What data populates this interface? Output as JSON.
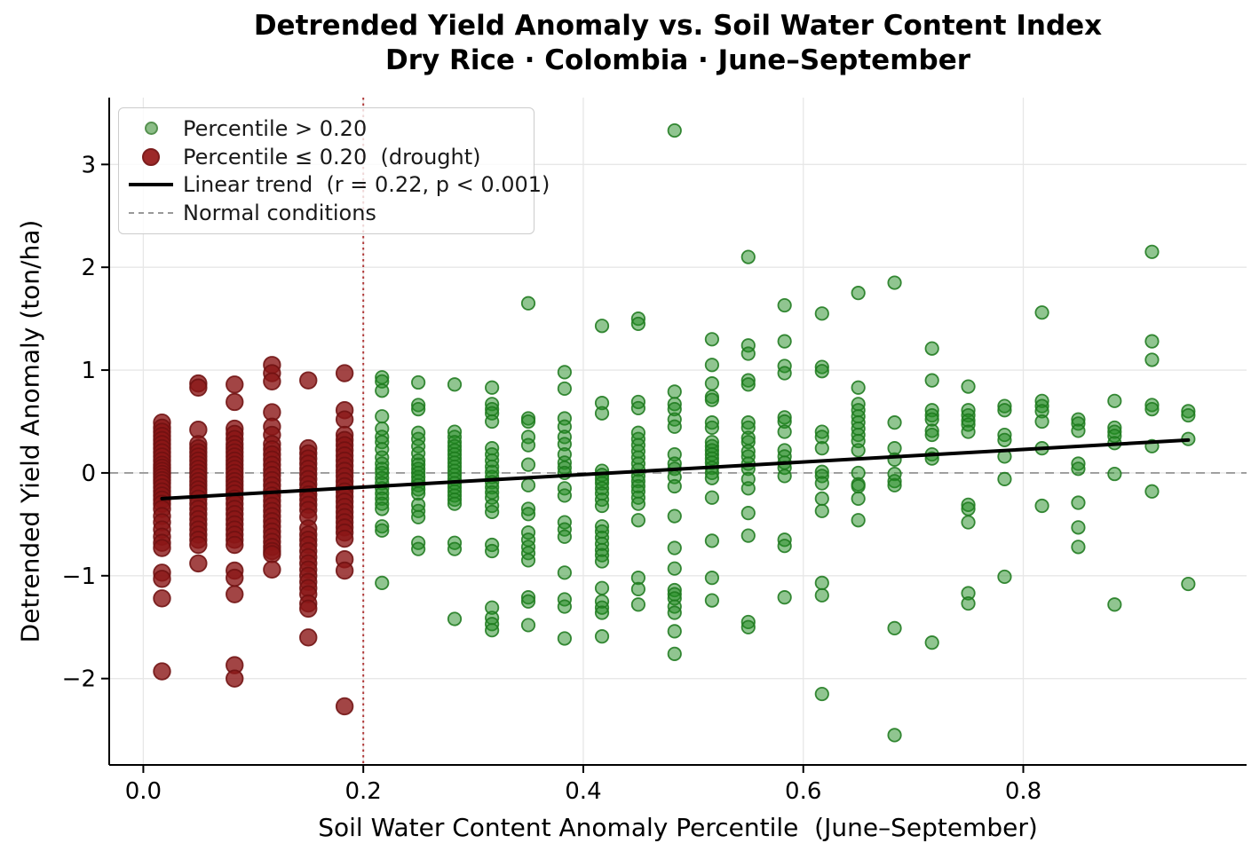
{
  "title": {
    "line1": "Detrended Yield Anomaly vs. Soil Water Content Index",
    "line2": "Dry Rice · Colombia · June–September"
  },
  "axes": {
    "xlabel": "Soil Water Content Anomaly Percentile  (June–September)",
    "ylabel": "Detrended Yield Anomaly (ton/ha)"
  },
  "legend": {
    "position": "upper-left",
    "items": [
      {
        "label": "Percentile > 0.20",
        "marker": "circle-small",
        "fill": "#8cbd87",
        "edge": "#55914f"
      },
      {
        "label": "Percentile ≤ 0.20  (drought)",
        "marker": "circle-large",
        "fill": "#9d2929",
        "edge": "#7c1d1d"
      },
      {
        "label": "Linear trend  (r = 0.22, p < 0.001)",
        "marker": "line",
        "fill": "#000000",
        "edge": "#000000"
      },
      {
        "label": "Normal conditions",
        "marker": "dashed-line",
        "fill": "#999999",
        "edge": "#999999"
      }
    ]
  },
  "chart_data": {
    "type": "scatter",
    "title": "Detrended Yield Anomaly vs. Soil Water Content Index — Dry Rice · Colombia · June–September",
    "xlabel": "Soil Water Content Anomaly Percentile (June–September)",
    "ylabel": "Detrended Yield Anomaly (ton/ha)",
    "xlim": [
      -0.031,
      1.003
    ],
    "ylim": [
      -2.84,
      3.65
    ],
    "grid": true,
    "grid_color": "#e7e7e7",
    "xticks": {
      "values": [
        0.0,
        0.2,
        0.4,
        0.6,
        0.8
      ],
      "labels": [
        "0.0",
        "0.2",
        "0.4",
        "0.6",
        "0.8"
      ]
    },
    "yticks": {
      "values": [
        3,
        2,
        1,
        0,
        -1,
        -2
      ],
      "labels": [
        "3",
        "2",
        "1",
        "0",
        "−1",
        "−2"
      ]
    },
    "threshold_x": 0.2,
    "threshold_color": "#b13b3b",
    "normal_y": 0,
    "normal_color": "#9a9a9a",
    "trend": {
      "x1": 0.017,
      "y1": -0.25,
      "x2": 0.95,
      "y2": 0.32,
      "r": 0.22,
      "p": "< 0.001",
      "color": "#000000"
    },
    "series": [
      {
        "name": "Percentile ≤ 0.20  (drought)",
        "fill": "#8b1717",
        "fill_opacity": 0.8,
        "edge": "#701111",
        "radius": 9.3,
        "columns": [
          {
            "x": 0.017,
            "ys": [
              0.49,
              0.44,
              0.4,
              0.36,
              0.32,
              0.28,
              0.24,
              0.2,
              0.16,
              0.12,
              0.08,
              0.05,
              0.02,
              -0.01,
              -0.04,
              -0.07,
              -0.1,
              -0.14,
              -0.18,
              -0.22,
              -0.26,
              -0.3,
              -0.35,
              -0.42,
              -0.48,
              -0.55,
              -0.62,
              -0.68,
              -0.73,
              -0.97,
              -1.03,
              -1.22,
              -1.93
            ]
          },
          {
            "x": 0.05,
            "ys": [
              0.87,
              0.83,
              0.42,
              0.28,
              0.24,
              0.2,
              0.16,
              0.12,
              0.08,
              0.04,
              0.0,
              -0.04,
              -0.08,
              -0.12,
              -0.16,
              -0.2,
              -0.25,
              -0.3,
              -0.35,
              -0.4,
              -0.45,
              -0.5,
              -0.55,
              -0.6,
              -0.65,
              -0.7,
              -0.88
            ]
          },
          {
            "x": 0.083,
            "ys": [
              0.86,
              0.69,
              0.43,
              0.38,
              0.33,
              0.28,
              0.24,
              0.2,
              0.16,
              0.12,
              0.08,
              0.04,
              0.0,
              -0.04,
              -0.08,
              -0.12,
              -0.16,
              -0.2,
              -0.25,
              -0.3,
              -0.35,
              -0.4,
              -0.45,
              -0.5,
              -0.55,
              -0.6,
              -0.65,
              -0.7,
              -0.95,
              -1.02,
              -1.18,
              -1.87,
              -2.0
            ]
          },
          {
            "x": 0.117,
            "ys": [
              1.05,
              0.97,
              0.89,
              0.59,
              0.45,
              0.37,
              0.28,
              0.23,
              0.18,
              0.13,
              0.08,
              0.03,
              -0.02,
              -0.07,
              -0.12,
              -0.17,
              -0.22,
              -0.27,
              -0.32,
              -0.37,
              -0.42,
              -0.47,
              -0.52,
              -0.57,
              -0.62,
              -0.67,
              -0.72,
              -0.76,
              -0.79,
              -0.94
            ]
          },
          {
            "x": 0.15,
            "ys": [
              0.9,
              0.24,
              0.19,
              0.14,
              0.09,
              0.04,
              -0.01,
              -0.06,
              -0.11,
              -0.16,
              -0.21,
              -0.26,
              -0.31,
              -0.36,
              -0.43,
              -0.54,
              -0.6,
              -0.65,
              -0.7,
              -0.76,
              -0.82,
              -0.88,
              -0.94,
              -1.0,
              -1.06,
              -1.12,
              -1.18,
              -1.27,
              -1.32,
              -1.6
            ]
          },
          {
            "x": 0.183,
            "ys": [
              0.97,
              0.61,
              0.52,
              0.37,
              0.32,
              0.27,
              0.22,
              0.17,
              0.12,
              0.07,
              0.02,
              -0.03,
              -0.08,
              -0.13,
              -0.18,
              -0.23,
              -0.28,
              -0.33,
              -0.38,
              -0.43,
              -0.48,
              -0.53,
              -0.58,
              -0.64,
              -0.84,
              -0.95,
              -2.27
            ]
          }
        ]
      },
      {
        "name": "Percentile > 0.20",
        "fill": "#228b22",
        "fill_opacity": 0.5,
        "edge": "#1e7a1e",
        "radius": 7.2,
        "columns": [
          {
            "x": 0.217,
            "ys": [
              0.93,
              0.89,
              0.8,
              0.55,
              0.43,
              0.35,
              0.3,
              0.23,
              0.15,
              0.09,
              0.04,
              0.0,
              -0.05,
              -0.1,
              -0.15,
              -0.2,
              -0.25,
              -0.3,
              -0.35,
              -0.52,
              -0.56,
              -1.07
            ]
          },
          {
            "x": 0.25,
            "ys": [
              0.88,
              0.66,
              0.62,
              0.39,
              0.33,
              0.26,
              0.19,
              0.12,
              0.08,
              0.04,
              0.0,
              -0.04,
              -0.08,
              -0.12,
              -0.16,
              -0.2,
              -0.31,
              -0.37,
              -0.43,
              -0.68,
              -0.74
            ]
          },
          {
            "x": 0.283,
            "ys": [
              0.86,
              0.4,
              0.35,
              0.3,
              0.26,
              0.22,
              0.18,
              0.14,
              0.1,
              0.06,
              0.02,
              -0.02,
              -0.06,
              -0.1,
              -0.14,
              -0.18,
              -0.22,
              -0.26,
              -0.3,
              -0.68,
              -0.74,
              -1.42
            ]
          },
          {
            "x": 0.317,
            "ys": [
              0.83,
              0.67,
              0.62,
              0.58,
              0.5,
              0.24,
              0.18,
              0.12,
              0.06,
              0.01,
              -0.04,
              -0.09,
              -0.14,
              -0.19,
              -0.24,
              -0.32,
              -0.38,
              -0.7,
              -0.76,
              -1.31,
              -1.41,
              -1.47,
              -1.53
            ]
          },
          {
            "x": 0.35,
            "ys": [
              1.65,
              0.53,
              0.5,
              0.35,
              0.27,
              0.08,
              -0.12,
              -0.35,
              -0.4,
              -0.58,
              -0.65,
              -0.72,
              -0.78,
              -0.85,
              -1.21,
              -1.25,
              -1.48
            ]
          },
          {
            "x": 0.383,
            "ys": [
              0.98,
              0.82,
              0.53,
              0.45,
              0.35,
              0.28,
              0.18,
              0.1,
              0.05,
              0.0,
              -0.15,
              -0.22,
              -0.48,
              -0.55,
              -0.62,
              -0.97,
              -1.23,
              -1.3,
              -1.61
            ]
          },
          {
            "x": 0.417,
            "ys": [
              1.43,
              0.68,
              0.58,
              0.02,
              -0.02,
              -0.06,
              -0.1,
              -0.15,
              -0.2,
              -0.26,
              -0.32,
              -0.52,
              -0.57,
              -0.63,
              -0.69,
              -0.75,
              -0.8,
              -0.86,
              -1.12,
              -1.25,
              -1.31,
              -1.36,
              -1.59
            ]
          },
          {
            "x": 0.45,
            "ys": [
              1.5,
              1.45,
              0.69,
              0.63,
              0.39,
              0.33,
              0.27,
              0.21,
              0.15,
              0.09,
              0.03,
              -0.03,
              -0.08,
              -0.13,
              -0.18,
              -0.24,
              -0.3,
              -0.46,
              -1.02,
              -1.13,
              -1.28
            ]
          },
          {
            "x": 0.483,
            "ys": [
              3.33,
              0.79,
              0.67,
              0.62,
              0.52,
              0.45,
              0.18,
              0.09,
              0.04,
              -0.04,
              -0.13,
              -0.42,
              -0.73,
              -0.93,
              -1.14,
              -1.18,
              -1.22,
              -1.3,
              -1.36,
              -1.54,
              -1.76
            ]
          },
          {
            "x": 0.517,
            "ys": [
              1.3,
              1.05,
              0.87,
              0.74,
              0.71,
              0.49,
              0.44,
              0.3,
              0.26,
              0.22,
              0.18,
              0.14,
              0.1,
              0.05,
              0.0,
              -0.05,
              -0.24,
              -0.66,
              -1.02,
              -1.24
            ]
          },
          {
            "x": 0.55,
            "ys": [
              2.1,
              1.24,
              1.16,
              0.9,
              0.86,
              0.49,
              0.44,
              0.34,
              0.3,
              0.21,
              0.16,
              0.09,
              0.04,
              -0.06,
              -0.15,
              -0.39,
              -0.61,
              -1.45,
              -1.5
            ]
          },
          {
            "x": 0.583,
            "ys": [
              1.63,
              1.28,
              1.04,
              0.97,
              0.54,
              0.5,
              0.4,
              0.22,
              0.16,
              0.1,
              0.05,
              -0.03,
              -0.65,
              -0.71,
              -1.21
            ]
          },
          {
            "x": 0.617,
            "ys": [
              1.55,
              1.03,
              0.99,
              0.4,
              0.35,
              0.24,
              0.01,
              -0.03,
              -0.1,
              -0.25,
              -0.37,
              -1.07,
              -1.19,
              -2.15
            ]
          },
          {
            "x": 0.65,
            "ys": [
              1.75,
              0.83,
              0.67,
              0.61,
              0.55,
              0.49,
              0.43,
              0.37,
              0.31,
              0.22,
              0.0,
              -0.11,
              -0.13,
              -0.25,
              -0.46
            ]
          },
          {
            "x": 0.683,
            "ys": [
              1.85,
              0.49,
              0.24,
              0.13,
              -0.01,
              -0.08,
              -0.12,
              -1.51,
              -2.55
            ]
          },
          {
            "x": 0.717,
            "ys": [
              1.21,
              0.9,
              0.61,
              0.56,
              0.52,
              0.41,
              0.37,
              0.18,
              0.14,
              -1.65
            ]
          },
          {
            "x": 0.75,
            "ys": [
              0.84,
              0.61,
              0.56,
              0.51,
              0.47,
              0.4,
              -0.31,
              -0.35,
              -0.48,
              -1.17,
              -1.27
            ]
          },
          {
            "x": 0.783,
            "ys": [
              0.65,
              0.61,
              0.37,
              0.32,
              0.16,
              -0.06,
              -1.01
            ]
          },
          {
            "x": 0.817,
            "ys": [
              1.56,
              0.7,
              0.65,
              0.6,
              0.5,
              0.24,
              -0.32
            ]
          },
          {
            "x": 0.85,
            "ys": [
              0.52,
              0.48,
              0.41,
              0.09,
              0.04,
              -0.29,
              -0.53,
              -0.72
            ]
          },
          {
            "x": 0.883,
            "ys": [
              0.7,
              0.44,
              0.4,
              0.36,
              0.29,
              -0.01,
              -1.28
            ]
          },
          {
            "x": 0.917,
            "ys": [
              2.15,
              1.28,
              1.1,
              0.66,
              0.62,
              0.26,
              -0.18
            ]
          },
          {
            "x": 0.95,
            "ys": [
              0.6,
              0.56,
              0.33,
              -1.08
            ]
          }
        ]
      }
    ]
  }
}
